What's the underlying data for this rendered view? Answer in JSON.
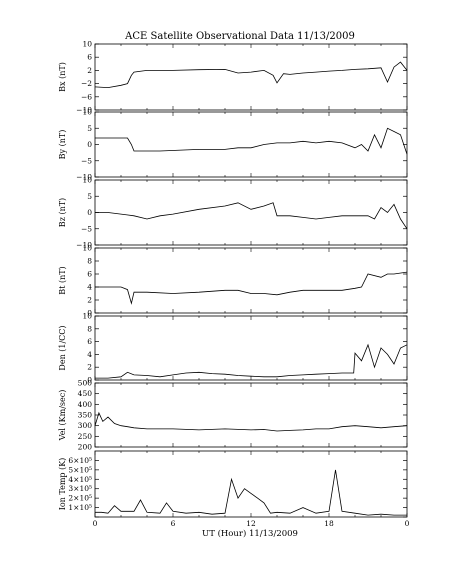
{
  "chart_data": {
    "type": "line",
    "title": "ACE Satellite Observational Data   11/13/2009",
    "xlabel": "UT (Hour)  11/13/2009",
    "x_ticks": [
      "0",
      "6",
      "12",
      "18",
      "0"
    ],
    "xlim": [
      0,
      24
    ],
    "panels": [
      {
        "name": "Bx",
        "ylabel": "Bx (nT)",
        "ylim": [
          -10,
          10
        ],
        "y_ticks": [
          10,
          6,
          2,
          -2,
          -6,
          -10
        ],
        "y_tick_labels": [
          "10",
          "6",
          "2",
          "−2",
          "−6",
          "−10"
        ],
        "series": {
          "x": [
            0,
            1,
            2,
            2.5,
            2.8,
            3,
            4,
            6,
            8,
            10,
            11,
            12,
            13,
            13.7,
            14,
            14.5,
            15,
            16,
            17,
            18,
            19,
            20,
            21,
            22,
            22.5,
            23,
            23.5,
            24
          ],
          "y": [
            -3,
            -3.2,
            -2.5,
            -2,
            0.5,
            1.5,
            2,
            2,
            2.2,
            2.3,
            1.2,
            1.5,
            2,
            0.5,
            -1.8,
            1,
            0.8,
            1.2,
            1.5,
            1.8,
            2,
            2.3,
            2.5,
            2.8,
            -1.5,
            3,
            4.5,
            2
          ]
        }
      },
      {
        "name": "By",
        "ylabel": "By (nT)",
        "ylim": [
          -10,
          10
        ],
        "y_ticks": [
          10,
          5,
          0,
          -5,
          -10
        ],
        "y_tick_labels": [
          "10",
          "5",
          "0",
          "−5",
          "−10"
        ],
        "series": {
          "x": [
            0,
            1,
            2,
            2.5,
            2.8,
            3,
            5,
            8,
            10,
            11,
            12,
            13,
            14,
            15,
            16,
            17,
            18,
            19,
            20,
            20.5,
            21,
            21.5,
            22,
            22.5,
            23,
            23.5,
            24
          ],
          "y": [
            2,
            2,
            2,
            2,
            0,
            -2,
            -2,
            -1.5,
            -1.5,
            -1,
            -1,
            0,
            0.5,
            0.5,
            1,
            0.5,
            1,
            0.5,
            -1,
            0,
            -2,
            3,
            -1,
            5,
            4,
            3,
            -3
          ]
        }
      },
      {
        "name": "Bz",
        "ylabel": "Bz (nT)",
        "ylim": [
          -10,
          10
        ],
        "y_ticks": [
          10,
          5,
          0,
          -5,
          -10
        ],
        "y_tick_labels": [
          "10",
          "5",
          "0",
          "−5",
          "−10"
        ],
        "series": {
          "x": [
            0,
            1,
            2,
            3,
            4,
            5,
            6,
            8,
            10,
            11,
            12,
            13,
            13.7,
            14,
            15,
            16,
            17,
            18,
            19,
            20,
            21,
            21.5,
            22,
            22.5,
            23,
            23.5,
            24
          ],
          "y": [
            0,
            0,
            -0.5,
            -1,
            -2,
            -1,
            -0.5,
            1,
            2,
            3,
            1,
            2,
            3,
            -1,
            -1,
            -1.5,
            -2,
            -1.5,
            -1,
            -1,
            -1,
            -2,
            1.5,
            0,
            2.5,
            -2,
            -5
          ]
        }
      },
      {
        "name": "Bt",
        "ylabel": "Bt (nT)",
        "ylim": [
          0,
          10
        ],
        "y_ticks": [
          10,
          8,
          6,
          4,
          2,
          0
        ],
        "y_tick_labels": [
          "10",
          "8",
          "6",
          "4",
          "2",
          "0"
        ],
        "series": {
          "x": [
            0,
            1,
            2,
            2.5,
            2.8,
            3,
            4,
            6,
            8,
            10,
            11,
            12,
            13,
            14,
            15,
            16,
            17,
            18,
            19,
            20,
            20.5,
            21,
            22,
            22.5,
            23,
            24
          ],
          "y": [
            4,
            4,
            4,
            3.6,
            1.5,
            3.2,
            3.2,
            3,
            3.2,
            3.5,
            3.5,
            3,
            3,
            2.8,
            3.2,
            3.5,
            3.5,
            3.5,
            3.5,
            3.8,
            4,
            6,
            5.5,
            6,
            6,
            6.3
          ]
        }
      },
      {
        "name": "Den",
        "ylabel": "Den (1/CC)",
        "ylim": [
          0,
          10
        ],
        "y_ticks": [
          10,
          8,
          6,
          4,
          2,
          0
        ],
        "y_tick_labels": [
          "10",
          "8",
          "6",
          "4",
          "2",
          "0"
        ],
        "series": {
          "x": [
            0,
            1,
            2,
            2.5,
            3,
            4,
            5,
            6,
            7,
            8,
            9,
            10,
            11,
            12,
            13,
            14,
            15,
            16,
            17,
            18,
            19,
            19.9,
            20,
            20.5,
            21,
            21.5,
            22,
            22.5,
            23,
            23.5,
            24
          ],
          "y": [
            0.3,
            0.3,
            0.5,
            1.2,
            0.8,
            0.7,
            0.5,
            0.8,
            1.1,
            1.2,
            1.0,
            0.9,
            0.7,
            0.6,
            0.5,
            0.5,
            0.7,
            0.8,
            0.9,
            1.0,
            1.1,
            1.1,
            4.2,
            3,
            5.5,
            2,
            5,
            4,
            2.5,
            5,
            5.5
          ]
        }
      },
      {
        "name": "Vel",
        "ylabel": "Vel (Km/sec)",
        "ylim": [
          200,
          500
        ],
        "y_ticks": [
          500,
          450,
          400,
          350,
          300,
          250,
          200
        ],
        "y_tick_labels": [
          "500",
          "450",
          "400",
          "350",
          "300",
          "250",
          "200"
        ],
        "series": {
          "x": [
            0,
            0.3,
            0.6,
            1,
            1.5,
            2,
            2.5,
            3,
            4,
            6,
            8,
            10,
            12,
            13,
            14,
            15,
            16,
            17,
            18,
            19,
            20,
            21,
            22,
            23,
            24
          ],
          "y": [
            300,
            360,
            320,
            340,
            310,
            300,
            295,
            290,
            285,
            285,
            280,
            285,
            280,
            282,
            275,
            278,
            280,
            285,
            285,
            295,
            300,
            295,
            290,
            295,
            300
          ]
        }
      },
      {
        "name": "Ion Temp",
        "ylabel": "Ion Temp (K)",
        "ylim": [
          0,
          700000
        ],
        "y_ticks": [
          0,
          100000,
          200000,
          300000,
          400000,
          500000,
          600000
        ],
        "y_tick_labels": [
          "",
          "1×10⁵",
          "2×10⁵",
          "3×10⁵",
          "4×10⁵",
          "5×10⁵",
          "6×10⁵"
        ],
        "series": {
          "x": [
            0,
            0.5,
            1,
            1.5,
            2,
            3,
            3.5,
            4,
            5,
            5.5,
            6,
            7,
            8,
            9,
            10,
            10.5,
            11,
            11.5,
            12,
            12.5,
            13,
            13.5,
            14,
            15,
            16,
            17,
            18,
            18.5,
            19,
            20,
            21,
            22,
            23,
            24
          ],
          "y": [
            50000,
            50000,
            40000,
            120000,
            60000,
            60000,
            180000,
            50000,
            40000,
            150000,
            60000,
            40000,
            50000,
            30000,
            40000,
            400000,
            200000,
            300000,
            250000,
            200000,
            150000,
            40000,
            50000,
            40000,
            100000,
            40000,
            60000,
            500000,
            60000,
            40000,
            20000,
            30000,
            20000,
            20000
          ]
        }
      }
    ]
  }
}
